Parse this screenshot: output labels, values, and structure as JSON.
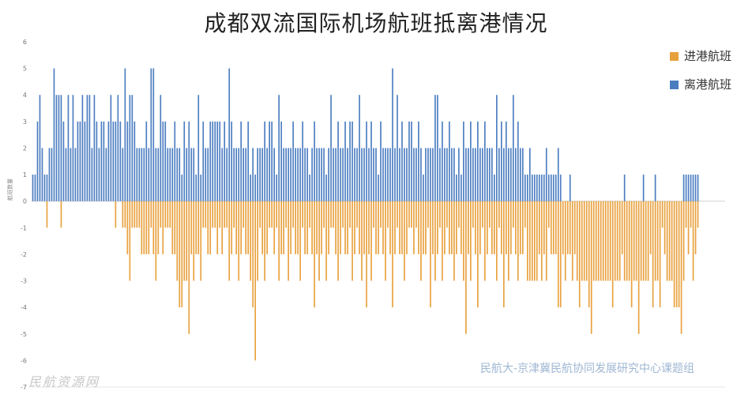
{
  "chart_data": {
    "type": "bar",
    "title": "成都双流国际机场航班抵离港情况",
    "ylabel": "航班数量",
    "ylim": [
      -7,
      6
    ],
    "yticks": [
      -7,
      -6,
      -5,
      -4,
      -3,
      -2,
      -1,
      0,
      1,
      2,
      3,
      4,
      5,
      6
    ],
    "legend_position": "right",
    "grid": false,
    "colors": {
      "arrivals": "#e8a03c",
      "departures": "#4a7cc0"
    },
    "series": [
      {
        "name": "进港航班",
        "key": "arrivals",
        "values": [
          0,
          0,
          0,
          0,
          0,
          0,
          -1,
          0,
          0,
          0,
          0,
          0,
          -1,
          0,
          0,
          0,
          0,
          0,
          0,
          0,
          0,
          0,
          0,
          0,
          0,
          0,
          0,
          0,
          0,
          0,
          0,
          0,
          0,
          0,
          0,
          -1,
          0,
          0,
          -1,
          -1,
          -2,
          -3,
          -1,
          -1,
          -1,
          -1,
          -2,
          -2,
          -2,
          -2,
          -1,
          -2,
          -3,
          -2,
          -1,
          -2,
          -1,
          -1,
          -1,
          -2,
          -2,
          -3,
          -4,
          -4,
          -3,
          -3,
          -5,
          -2,
          -3,
          -2,
          -2,
          -3,
          -1,
          -1,
          -2,
          -2,
          -1,
          -1,
          -2,
          -1,
          -2,
          -1,
          -1,
          -3,
          -2,
          -1,
          -2,
          -3,
          -2,
          -1,
          -2,
          -2,
          -3,
          -4,
          -6,
          -3,
          -1,
          -2,
          -3,
          -2,
          -1,
          -1,
          -2,
          -1,
          -3,
          -2,
          -2,
          -1,
          -3,
          -2,
          -1,
          -2,
          -2,
          -3,
          -1,
          -2,
          -2,
          -1,
          -2,
          -4,
          -2,
          -3,
          -2,
          -1,
          -3,
          -2,
          -1,
          -1,
          -2,
          -3,
          -2,
          -1,
          -2,
          -2,
          -1,
          -3,
          -2,
          -1,
          -2,
          -3,
          -2,
          -4,
          -2,
          -3,
          -1,
          -2,
          -2,
          -1,
          -2,
          -3,
          -1,
          -2,
          -4,
          -2,
          -1,
          -2,
          -2,
          -3,
          -2,
          -1,
          -1,
          -2,
          -1,
          -2,
          -3,
          -2,
          -2,
          -1,
          -4,
          -2,
          -3,
          -2,
          -1,
          -3,
          -2,
          -1,
          -2,
          -2,
          -3,
          -2,
          -1,
          -2,
          -3,
          -5,
          -2,
          -3,
          -1,
          -2,
          -4,
          -2,
          -1,
          -3,
          -2,
          -1,
          -2,
          -2,
          -3,
          -1,
          -2,
          -4,
          -2,
          -3,
          -2,
          -1,
          -2,
          -3,
          -2,
          -2,
          -1,
          -3,
          -3,
          -3,
          -3,
          -3,
          -2,
          -3,
          -2,
          -3,
          -1,
          -2,
          -2,
          -2,
          -4,
          -4,
          -2,
          -3,
          -2,
          -2,
          -3,
          -2,
          -3,
          -4,
          -3,
          -3,
          -3,
          -4,
          -5,
          -3,
          -3,
          -3,
          -3,
          -3,
          -3,
          -3,
          -3,
          -4,
          -3,
          -3,
          -3,
          -2,
          -3,
          -3,
          -3,
          -4,
          -3,
          -3,
          -5,
          -3,
          -3,
          -3,
          -3,
          -2,
          -4,
          -3,
          -3,
          -4,
          -1,
          -2,
          -3,
          -3,
          -3,
          -4,
          -4,
          -4,
          -5,
          -3,
          -1,
          -2,
          -1,
          -3,
          -2,
          -1,
          0,
          0,
          0,
          0,
          0,
          0,
          0,
          0,
          0,
          0,
          0
        ]
      },
      {
        "name": "离港航班",
        "key": "departures",
        "values": [
          1,
          1,
          3,
          4,
          2,
          1,
          1,
          2,
          2,
          5,
          4,
          4,
          4,
          3,
          2,
          4,
          2,
          4,
          2,
          3,
          3,
          4,
          3,
          4,
          4,
          2,
          4,
          3,
          2,
          3,
          3,
          2,
          3,
          4,
          3,
          3,
          4,
          3,
          2,
          5,
          3,
          4,
          4,
          3,
          2,
          2,
          2,
          2,
          3,
          2,
          5,
          5,
          2,
          2,
          4,
          3,
          3,
          2,
          2,
          2,
          3,
          2,
          2,
          1,
          3,
          2,
          3,
          2,
          2,
          1,
          4,
          1,
          3,
          2,
          2,
          3,
          3,
          3,
          3,
          3,
          2,
          3,
          2,
          5,
          3,
          2,
          2,
          2,
          3,
          2,
          2,
          3,
          1,
          2,
          1,
          2,
          2,
          2,
          3,
          2,
          3,
          3,
          2,
          1,
          4,
          3,
          2,
          2,
          2,
          2,
          3,
          2,
          2,
          2,
          3,
          2,
          2,
          1,
          2,
          3,
          2,
          2,
          2,
          2,
          1,
          2,
          4,
          2,
          2,
          3,
          2,
          2,
          3,
          2,
          3,
          3,
          2,
          2,
          4,
          2,
          2,
          3,
          2,
          3,
          2,
          2,
          1,
          3,
          2,
          2,
          2,
          2,
          5,
          2,
          4,
          2,
          3,
          2,
          2,
          3,
          3,
          2,
          2,
          3,
          2,
          1,
          2,
          2,
          2,
          2,
          4,
          4,
          2,
          3,
          2,
          2,
          3,
          2,
          2,
          1,
          2,
          1,
          3,
          2,
          2,
          3,
          2,
          2,
          3,
          2,
          2,
          3,
          2,
          2,
          2,
          1,
          4,
          2,
          3,
          2,
          3,
          2,
          2,
          4,
          2,
          3,
          2,
          2,
          1,
          1,
          2,
          1,
          1,
          1,
          1,
          1,
          1,
          2,
          1,
          1,
          1,
          1,
          2,
          1,
          0,
          0,
          0,
          1,
          0,
          0,
          0,
          0,
          0,
          0,
          0,
          0,
          0,
          0,
          0,
          0,
          0,
          0,
          0,
          0,
          0,
          0,
          0,
          0,
          0,
          0,
          1,
          0,
          0,
          0,
          0,
          0,
          0,
          0,
          1,
          0,
          0,
          0,
          0,
          1,
          0,
          0,
          0,
          0,
          0,
          0,
          0,
          0,
          0,
          0,
          0,
          1,
          1,
          1,
          1,
          1,
          1,
          1,
          0,
          0,
          0,
          0,
          0,
          0,
          0,
          0,
          0,
          0,
          0
        ]
      }
    ],
    "watermark_right": "民航大-京津冀民航协同发展研究中心课题组",
    "watermark_left": "民航资源网"
  }
}
